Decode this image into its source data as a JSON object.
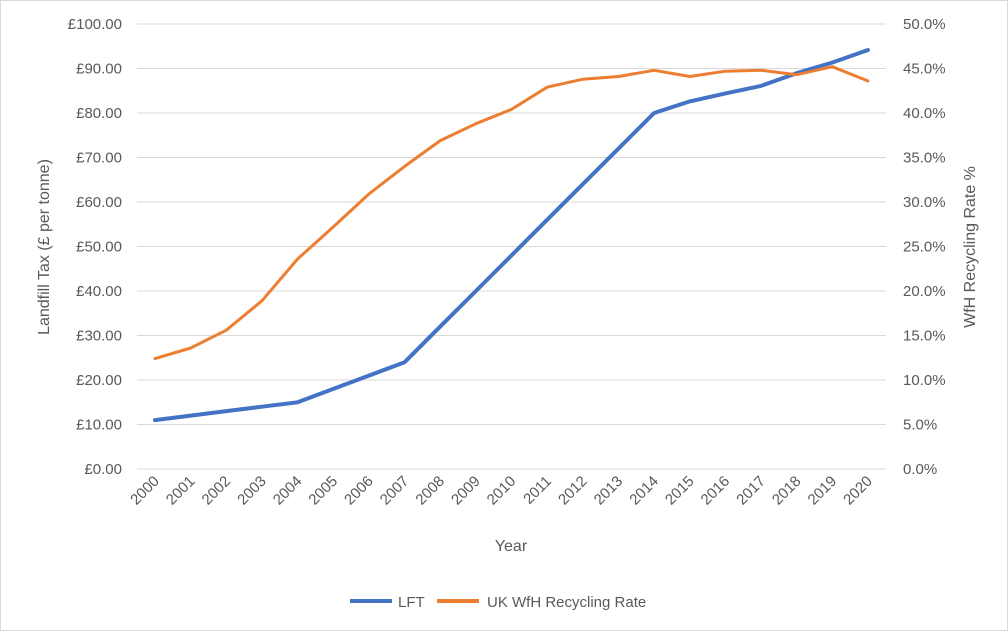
{
  "chart_data": {
    "type": "line",
    "xlabel": "Year",
    "ylabel": "Landfill Tax (£ per tonne)",
    "y2label": "WfH Recycling Rate %",
    "categories": [
      "2000",
      "2001",
      "2002",
      "2003",
      "2004",
      "2005",
      "2006",
      "2007",
      "2008",
      "2009",
      "2010",
      "2011",
      "2012",
      "2013",
      "2014",
      "2015",
      "2016",
      "2017",
      "2018",
      "2019",
      "2020"
    ],
    "ylim": [
      0,
      100
    ],
    "yticks": [
      "£0.00",
      "£10.00",
      "£20.00",
      "£30.00",
      "£40.00",
      "£50.00",
      "£60.00",
      "£70.00",
      "£80.00",
      "£90.00",
      "£100.00"
    ],
    "y2lim": [
      0,
      50
    ],
    "y2ticks": [
      "0.0%",
      "5.0%",
      "10.0%",
      "15.0%",
      "20.0%",
      "25.0%",
      "30.0%",
      "35.0%",
      "40.0%",
      "45.0%",
      "50.0%"
    ],
    "grid": true,
    "legend_position": "bottom",
    "series": [
      {
        "name": "LFT",
        "axis": "left",
        "color": "#4472C4",
        "values": [
          11,
          12,
          13,
          14,
          15,
          18,
          21,
          24,
          32,
          40,
          48,
          56,
          64,
          72,
          80,
          82.6,
          84.4,
          86.1,
          88.95,
          91.35,
          94.15
        ]
      },
      {
        "name": "UK WfH Recycling Rate",
        "axis": "right",
        "color": "#ED7D31",
        "values": [
          12.4,
          13.6,
          15.6,
          18.9,
          23.6,
          27.2,
          30.9,
          34.0,
          36.9,
          38.8,
          40.4,
          42.9,
          43.8,
          44.1,
          44.8,
          44.1,
          44.7,
          44.8,
          44.3,
          45.2,
          43.6
        ]
      }
    ]
  }
}
